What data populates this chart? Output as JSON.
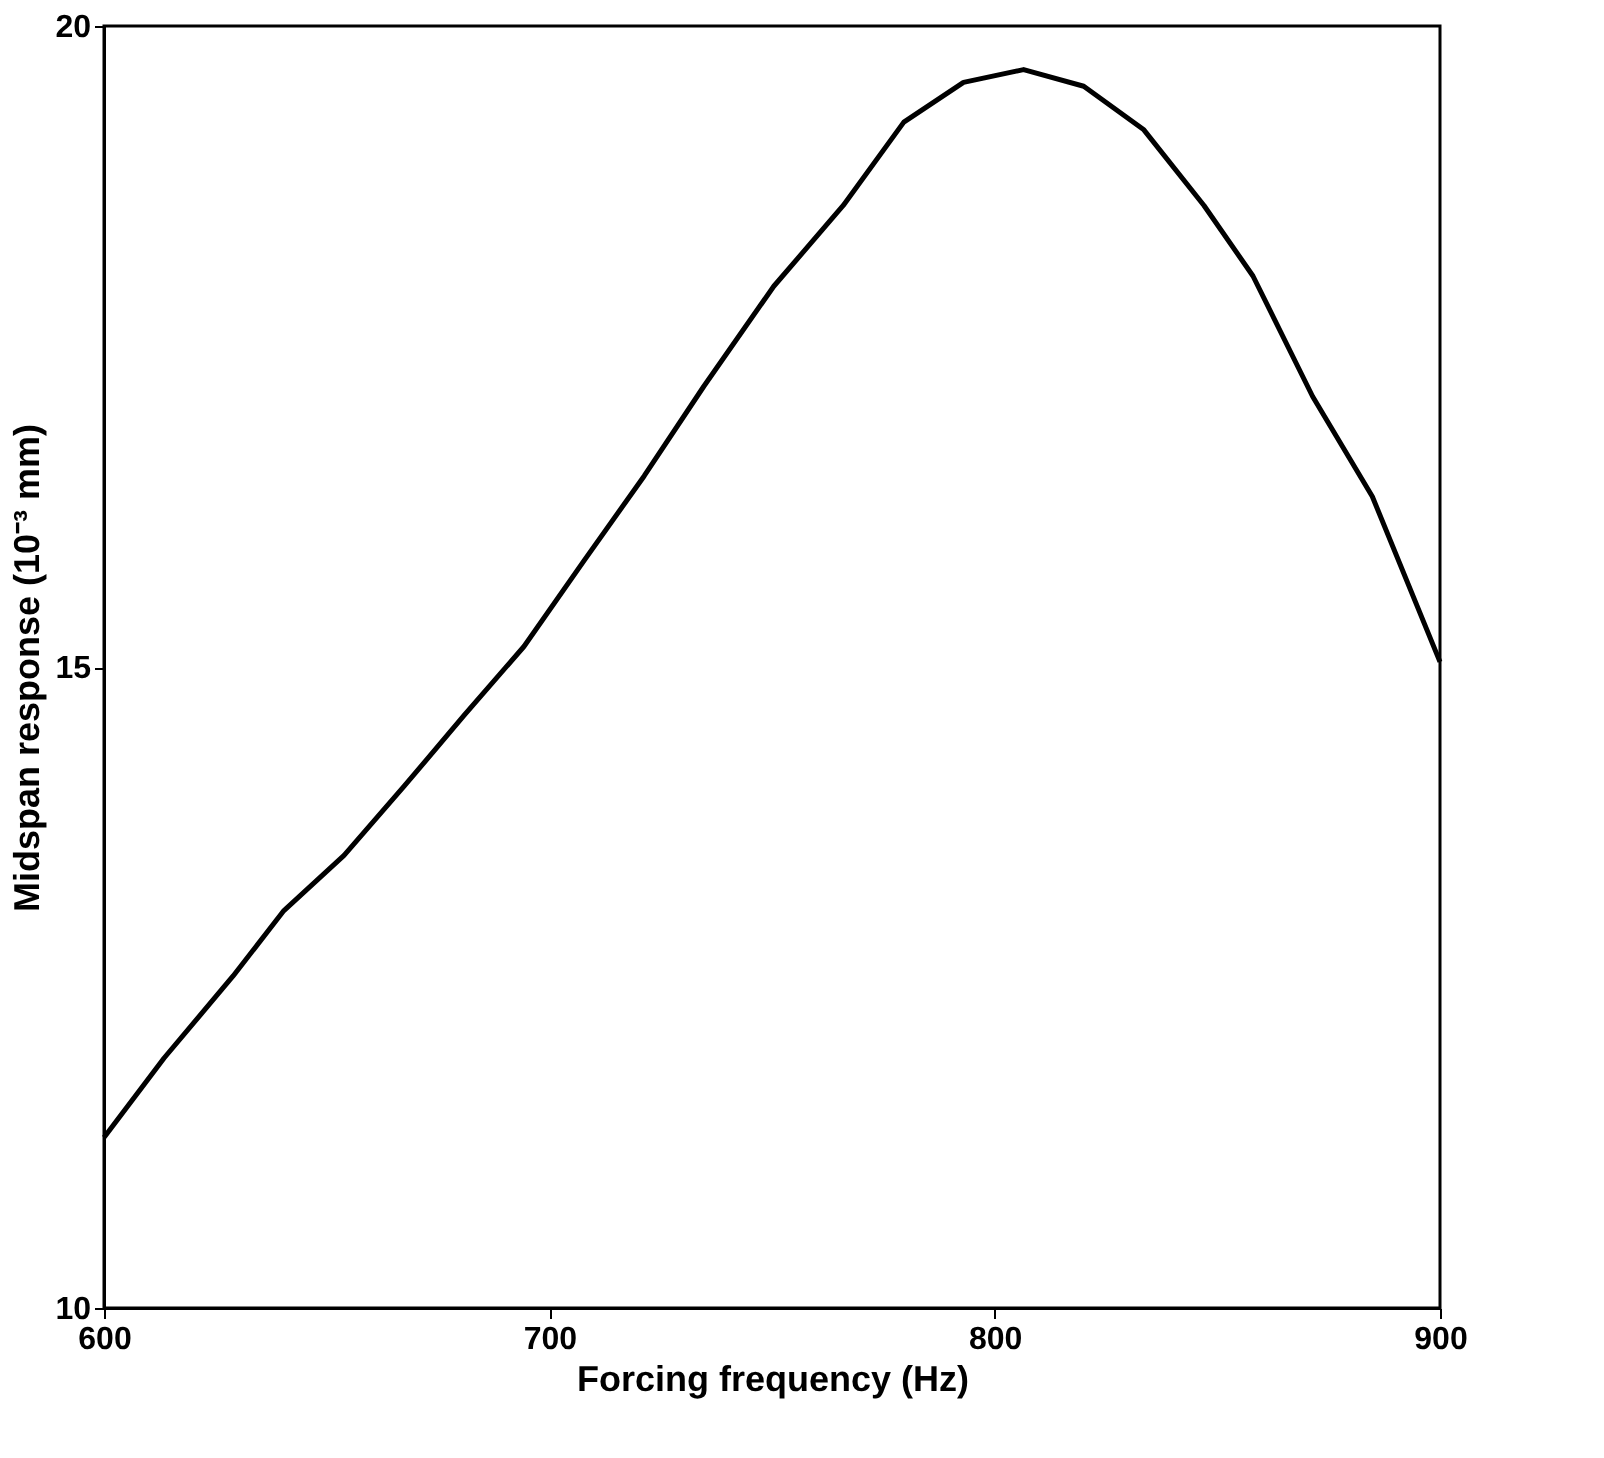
{
  "chart_data": {
    "type": "line",
    "xlabel": "Forcing frequency (Hz)",
    "ylabel": "Midspan response (10⁻³ mm)",
    "x": [
      600,
      613.5,
      629,
      640.4,
      653.9,
      667.4,
      680.8,
      694.3,
      707.8,
      721.3,
      734.7,
      750.4,
      766,
      779.6,
      793,
      806.5,
      820,
      833.5,
      847,
      858,
      871.4,
      884.8,
      900
    ],
    "series": [
      {
        "color": "#000000",
        "values": [
          11.33,
          11.95,
          12.59,
          13.1,
          13.53,
          14.07,
          14.62,
          15.16,
          15.83,
          16.49,
          17.19,
          17.97,
          18.6,
          19.25,
          19.56,
          19.66,
          19.53,
          19.19,
          18.6,
          18.05,
          17.11,
          16.33,
          15.04
        ]
      }
    ],
    "xlim": [
      600,
      900
    ],
    "xticks": [
      600,
      700,
      800,
      900
    ],
    "ylim": [
      10,
      20
    ],
    "yticks": [
      10,
      15,
      20
    ],
    "grid": false,
    "marker": "none",
    "line_style": "solid"
  }
}
